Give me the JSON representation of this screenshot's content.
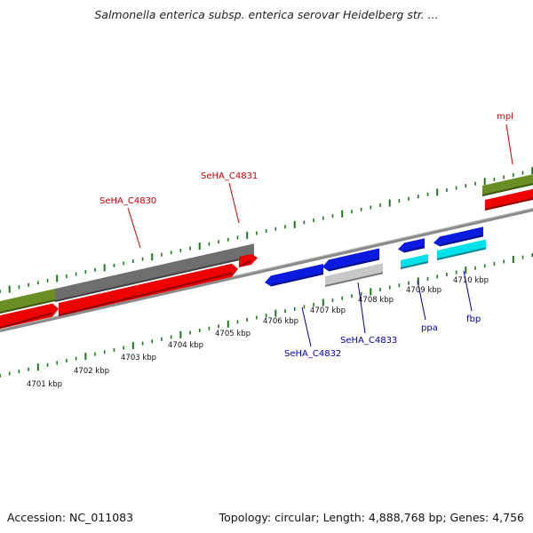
{
  "header": {
    "title": "Salmonella enterica subsp. enterica serovar Heidelberg str. ..."
  },
  "footer": {
    "accession": "Accession: NC_011083",
    "stats": "Topology: circular; Length: 4,888,768 bp; Genes: 4,756"
  },
  "colors": {
    "forward_label": "#cc0000",
    "reverse_label": "#0000aa",
    "tick": "#1a7a1a",
    "backbone": "#888888",
    "cds_red": "#ee0000",
    "cds_blue": "#0a1adf",
    "cds_gray": "#6e6e6e",
    "cds_light_gray": "#c8c8c8",
    "cds_cyan": "#00e0e8",
    "cds_olive": "#6a8e23"
  },
  "ruler": {
    "labels": [
      "4701 kbp",
      "4702 kbp",
      "4703 kbp",
      "4704 kbp",
      "4705 kbp",
      "4706 kbp",
      "4707 kbp",
      "4708 kbp",
      "4709 kbp",
      "4710 kbp"
    ]
  },
  "gene_labels": {
    "forward": [
      "SeHA_C4830",
      "SeHA_C4831",
      "mpl"
    ],
    "reverse": [
      "SeHA_C4832",
      "SeHA_C4833",
      "ppa",
      "fbp"
    ]
  }
}
